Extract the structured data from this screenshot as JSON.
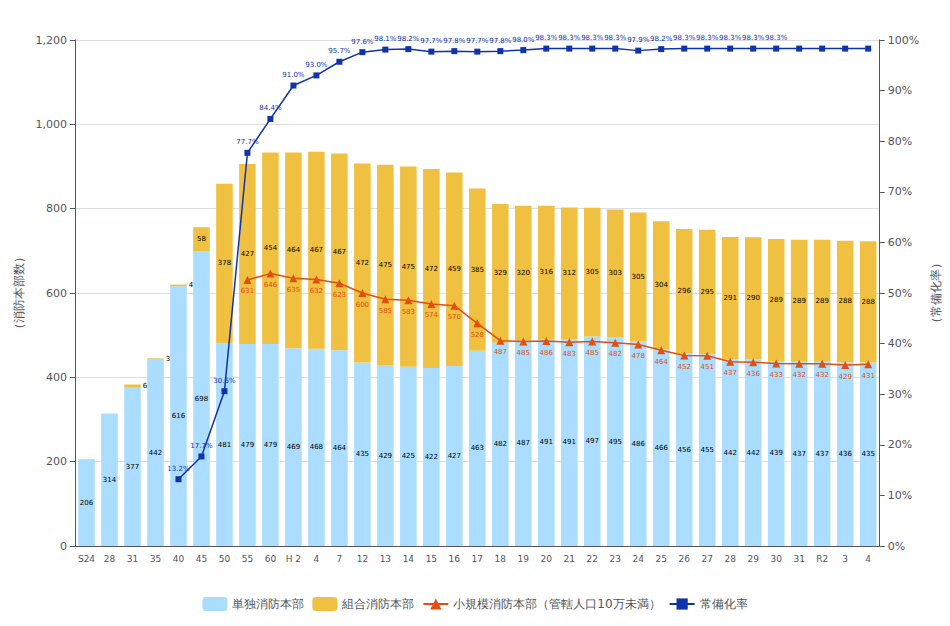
{
  "chart_data": {
    "type": "bar",
    "stacked": true,
    "grid": true,
    "legend": "bottom",
    "categories": [
      "S24",
      "28",
      "31",
      "35",
      "40",
      "45",
      "50",
      "55",
      "60",
      "H 2",
      "4",
      "7",
      "12",
      "13",
      "14",
      "15",
      "16",
      "17",
      "18",
      "19",
      "20",
      "21",
      "22",
      "23",
      "24",
      "25",
      "26",
      "27",
      "28",
      "29",
      "30",
      "31",
      "R2",
      "3",
      "4"
    ],
    "y_label": "（消防本部数）",
    "y2_label": "（常備化率）",
    "ylim": [
      0,
      1200
    ],
    "yticks": [
      0,
      200,
      400,
      600,
      800,
      {
        "value": 1000,
        "label": "1,000"
      },
      {
        "value": 1200,
        "label": "1,200"
      }
    ],
    "y2lim": [
      0,
      100
    ],
    "y2ticks": [
      {
        "value": 0,
        "label": "0%"
      },
      {
        "value": 10,
        "label": "10%"
      },
      {
        "value": 20,
        "label": "20%"
      },
      {
        "value": 30,
        "label": "30%"
      },
      {
        "value": 40,
        "label": "40%"
      },
      {
        "value": 50,
        "label": "50%"
      },
      {
        "value": 60,
        "label": "60%"
      },
      {
        "value": 70,
        "label": "70%"
      },
      {
        "value": 80,
        "label": "80%"
      },
      {
        "value": 90,
        "label": "90%"
      },
      {
        "value": 100,
        "label": "100%"
      }
    ],
    "totals": [
      206,
      314,
      383,
      445,
      620,
      756,
      859,
      906,
      933,
      933,
      935,
      931,
      907,
      904,
      900,
      894,
      886,
      848,
      811,
      807,
      807,
      803,
      802,
      798,
      791,
      770,
      752,
      750,
      733,
      732,
      728,
      726,
      726,
      724,
      723
    ],
    "series": [
      {
        "name": "単独消防本部",
        "type": "bar",
        "color": "#aaddff",
        "data_labels": true,
        "values": [
          206,
          314,
          377,
          442,
          616,
          698,
          481,
          479,
          479,
          469,
          468,
          464,
          435,
          429,
          425,
          422,
          427,
          463,
          482,
          487,
          491,
          491,
          497,
          495,
          486,
          466,
          456,
          455,
          442,
          442,
          439,
          437,
          437,
          436,
          435
        ]
      },
      {
        "name": "組合消防本部",
        "type": "bar",
        "color": "#f0c040",
        "values": [
          0,
          0,
          6,
          3,
          4,
          58,
          378,
          427,
          454,
          464,
          467,
          467,
          472,
          475,
          475,
          472,
          459,
          385,
          329,
          320,
          316,
          312,
          305,
          303,
          305,
          304,
          296,
          295,
          291,
          290,
          289,
          289,
          289,
          288,
          288
        ],
        "value_labels": [
          null,
          null,
          "6",
          "3",
          "4",
          "58",
          "378",
          "427",
          "454",
          "464",
          "467",
          "467",
          "472",
          "475",
          "475",
          "472",
          "459",
          "385",
          "329",
          "320",
          "316",
          "312",
          "305",
          "303",
          "305",
          "304",
          "296",
          "295",
          "291",
          "290",
          "289",
          "289",
          "289",
          "288",
          "288"
        ]
      },
      {
        "name": "小規模消防本部（管轄人口10万未満）",
        "type": "line",
        "color": "#e05010",
        "marker": "triangle",
        "data_labels": true,
        "values": [
          null,
          null,
          null,
          null,
          null,
          null,
          null,
          631,
          646,
          635,
          632,
          623,
          600,
          585,
          583,
          574,
          570,
          528,
          487,
          485,
          486,
          483,
          485,
          482,
          478,
          464,
          452,
          451,
          437,
          436,
          433,
          432,
          432,
          429,
          431
        ]
      },
      {
        "name": "常備化率",
        "type": "line",
        "axis": "y2",
        "color": "#1133aa",
        "marker": "square",
        "values": [
          null,
          null,
          null,
          null,
          13.2,
          17.7,
          30.6,
          77.7,
          84.4,
          91.0,
          93.0,
          95.7,
          97.6,
          98.1,
          98.2,
          97.7,
          97.8,
          97.7,
          97.8,
          98.0,
          98.3,
          98.3,
          98.3,
          98.3,
          97.9,
          98.2,
          98.3,
          98.3,
          98.3,
          98.3,
          98.3,
          98.3,
          98.3,
          98.3,
          98.3
        ],
        "value_labels": [
          null,
          null,
          null,
          null,
          "13.2%",
          "17.7%",
          "30.6%",
          "77.7%",
          "84.4%",
          "91.0%",
          "93.0%",
          "95.7%",
          "97.6%",
          "98.1%",
          "98.2%",
          "97.7%",
          "97.8%",
          "97.7%",
          "97.8%",
          "98.0%",
          "98.3%",
          "98.3%",
          "98.3%",
          "98.3%",
          "97.9%",
          "98.2%",
          "98.3%",
          "98.3%",
          "98.3%",
          "98.3%",
          "98.3%",
          null,
          null,
          null,
          null
        ]
      }
    ]
  }
}
